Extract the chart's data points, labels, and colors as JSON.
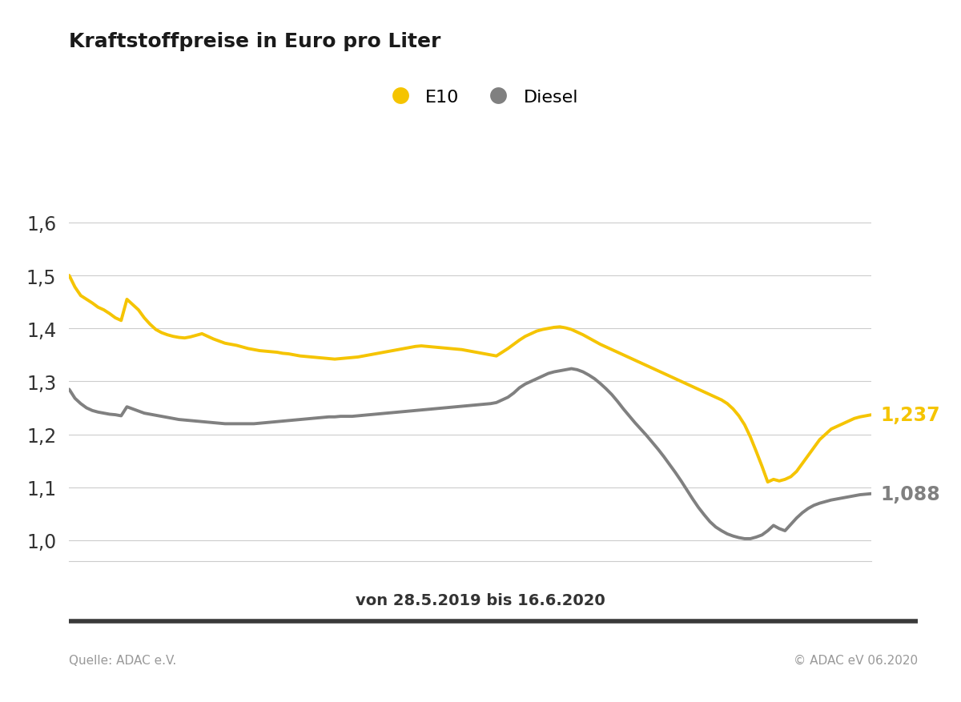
{
  "title": "Kraftstoffpreise in Euro pro Liter",
  "date_label": "von 28.5.2019 bis 16.6.2020",
  "source_left": "Quelle: ADAC e.V.",
  "source_right": "© ADAC eV 06.2020",
  "legend_e10": "E10",
  "legend_diesel": "Diesel",
  "e10_color": "#F5C400",
  "diesel_color": "#808080",
  "ylim": [
    0.96,
    1.65
  ],
  "yticks": [
    1.0,
    1.1,
    1.2,
    1.3,
    1.4,
    1.5,
    1.6
  ],
  "e10_label_value": "1,237",
  "diesel_label_value": "1,088",
  "background_color": "#ffffff",
  "e10_data": [
    1.5,
    1.478,
    1.462,
    1.455,
    1.448,
    1.44,
    1.435,
    1.428,
    1.42,
    1.415,
    1.455,
    1.445,
    1.435,
    1.42,
    1.408,
    1.398,
    1.392,
    1.388,
    1.385,
    1.383,
    1.382,
    1.384,
    1.387,
    1.39,
    1.385,
    1.38,
    1.376,
    1.372,
    1.37,
    1.368,
    1.365,
    1.362,
    1.36,
    1.358,
    1.357,
    1.356,
    1.355,
    1.353,
    1.352,
    1.35,
    1.348,
    1.347,
    1.346,
    1.345,
    1.344,
    1.343,
    1.342,
    1.343,
    1.344,
    1.345,
    1.346,
    1.348,
    1.35,
    1.352,
    1.354,
    1.356,
    1.358,
    1.36,
    1.362,
    1.364,
    1.366,
    1.367,
    1.366,
    1.365,
    1.364,
    1.363,
    1.362,
    1.361,
    1.36,
    1.358,
    1.356,
    1.354,
    1.352,
    1.35,
    1.348,
    1.355,
    1.362,
    1.37,
    1.378,
    1.385,
    1.39,
    1.395,
    1.398,
    1.4,
    1.402,
    1.403,
    1.401,
    1.398,
    1.393,
    1.388,
    1.382,
    1.376,
    1.37,
    1.365,
    1.36,
    1.355,
    1.35,
    1.345,
    1.34,
    1.335,
    1.33,
    1.325,
    1.32,
    1.315,
    1.31,
    1.305,
    1.3,
    1.295,
    1.29,
    1.285,
    1.28,
    1.275,
    1.27,
    1.265,
    1.258,
    1.248,
    1.235,
    1.218,
    1.195,
    1.168,
    1.14,
    1.11,
    1.115,
    1.112,
    1.115,
    1.12,
    1.13,
    1.145,
    1.16,
    1.175,
    1.19,
    1.2,
    1.21,
    1.215,
    1.22,
    1.225,
    1.23,
    1.233,
    1.235,
    1.237
  ],
  "diesel_data": [
    1.285,
    1.268,
    1.258,
    1.25,
    1.245,
    1.242,
    1.24,
    1.238,
    1.237,
    1.235,
    1.252,
    1.248,
    1.244,
    1.24,
    1.238,
    1.236,
    1.234,
    1.232,
    1.23,
    1.228,
    1.227,
    1.226,
    1.225,
    1.224,
    1.223,
    1.222,
    1.221,
    1.22,
    1.22,
    1.22,
    1.22,
    1.22,
    1.22,
    1.221,
    1.222,
    1.223,
    1.224,
    1.225,
    1.226,
    1.227,
    1.228,
    1.229,
    1.23,
    1.231,
    1.232,
    1.233,
    1.233,
    1.234,
    1.234,
    1.234,
    1.235,
    1.236,
    1.237,
    1.238,
    1.239,
    1.24,
    1.241,
    1.242,
    1.243,
    1.244,
    1.245,
    1.246,
    1.247,
    1.248,
    1.249,
    1.25,
    1.251,
    1.252,
    1.253,
    1.254,
    1.255,
    1.256,
    1.257,
    1.258,
    1.26,
    1.265,
    1.27,
    1.278,
    1.288,
    1.295,
    1.3,
    1.305,
    1.31,
    1.315,
    1.318,
    1.32,
    1.322,
    1.324,
    1.322,
    1.318,
    1.312,
    1.305,
    1.296,
    1.286,
    1.275,
    1.262,
    1.248,
    1.235,
    1.222,
    1.21,
    1.198,
    1.185,
    1.172,
    1.158,
    1.143,
    1.128,
    1.112,
    1.095,
    1.078,
    1.062,
    1.048,
    1.035,
    1.025,
    1.018,
    1.012,
    1.008,
    1.005,
    1.003,
    1.003,
    1.006,
    1.01,
    1.018,
    1.028,
    1.022,
    1.018,
    1.03,
    1.042,
    1.052,
    1.06,
    1.066,
    1.07,
    1.073,
    1.076,
    1.078,
    1.08,
    1.082,
    1.084,
    1.086,
    1.087,
    1.088
  ]
}
